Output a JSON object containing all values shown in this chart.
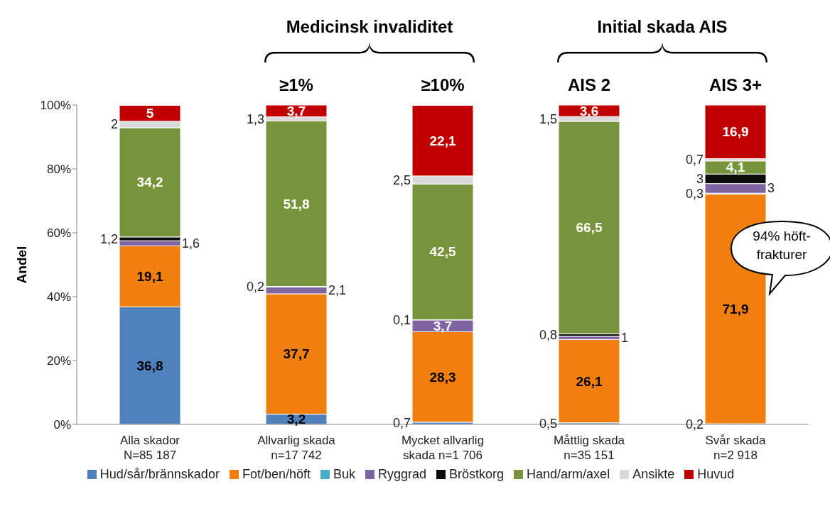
{
  "chart_data": {
    "type": "bar",
    "stacked": true,
    "ylabel": "Andel",
    "categories": [
      "Alla skador\nN=85 187",
      "Allvarlig skada\nn=17 742",
      "Mycket allvarlig\nskada n=1 706",
      "Måttlig skada\nn=35 151",
      "Svår skada\nn=2 918"
    ],
    "ylim": [
      0,
      100
    ],
    "yticks": [
      {
        "value": 0,
        "label": "0%"
      },
      {
        "value": 20,
        "label": "20%"
      },
      {
        "value": 40,
        "label": "40%"
      },
      {
        "value": 60,
        "label": "60%"
      },
      {
        "value": 80,
        "label": "80%"
      },
      {
        "value": 100,
        "label": "100%"
      }
    ],
    "series": [
      {
        "name": "Hud/sår/brännskador",
        "color": "#4f81bd",
        "values": [
          36.8,
          3.2,
          0.7,
          0.5,
          0.2
        ],
        "value_labels": [
          "36,8",
          "3,2",
          "0,7",
          "0,5",
          "0,2"
        ]
      },
      {
        "name": "Fot/ben/höft",
        "color": "#f07f10",
        "values": [
          19.1,
          37.7,
          28.3,
          26.1,
          71.9
        ],
        "value_labels": [
          "19,1",
          "37,7",
          "28,3",
          "26,1",
          "71,9"
        ]
      },
      {
        "name": "Buk",
        "color": "#4bacc6",
        "values": [
          null,
          null,
          null,
          null,
          0.3
        ],
        "value_labels": [
          null,
          null,
          null,
          null,
          "0,3"
        ]
      },
      {
        "name": "Ryggrad",
        "color": "#8064a2",
        "values": [
          1.6,
          2.1,
          3.7,
          1,
          3
        ],
        "value_labels": [
          "1,6",
          "2,1",
          "3,7",
          "1",
          "3"
        ]
      },
      {
        "name": "Bröstkorg",
        "color": "#0d0d0d",
        "values": [
          1.2,
          0.2,
          0.1,
          0.8,
          3
        ],
        "value_labels": [
          "1,2",
          "0,2",
          "0,1",
          "0,8",
          "3"
        ]
      },
      {
        "name": "Hand/arm/axel",
        "color": "#77933c",
        "values": [
          34.2,
          51.8,
          42.5,
          66.5,
          4.1
        ],
        "value_labels": [
          "34,2",
          "51,8",
          "42,5",
          "66,5",
          "4,1"
        ]
      },
      {
        "name": "Ansikte",
        "color": "#d9d9d9",
        "values": [
          2,
          1.3,
          2.5,
          1.5,
          0.7
        ],
        "value_labels": [
          "2",
          "1,3",
          "2,5",
          "1,5",
          "0,7"
        ]
      },
      {
        "name": "Huvud",
        "color": "#c00000",
        "values": [
          5,
          3.7,
          22.1,
          3.6,
          16.9
        ],
        "value_labels": [
          "5",
          "3,7",
          "22,1",
          "3,6",
          "16,9"
        ]
      }
    ],
    "legend": "bottom",
    "grid": false,
    "annotations": [
      "Medicinsk invaliditet",
      "Initial skada AIS",
      "≥1%",
      "≥10%",
      "AIS 2",
      "AIS 3+",
      "94% höft-frakturer"
    ]
  }
}
